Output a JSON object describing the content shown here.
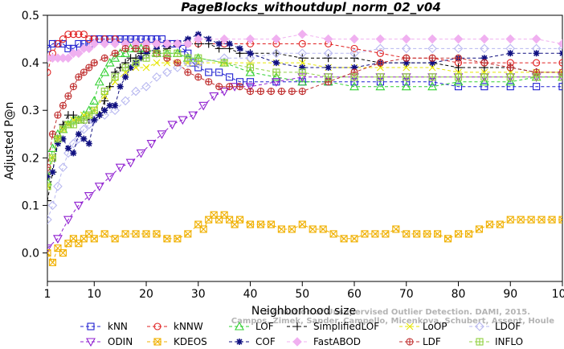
{
  "chart_data": {
    "type": "line",
    "title": "PageBlocks_withoutdupl_norm_02_v04",
    "xlabel": "Neighborhood size",
    "ylabel": "Adjusted P@n",
    "xlim": [
      1,
      100
    ],
    "ylim": [
      -0.06,
      0.5
    ],
    "x_ticks": [
      1,
      10,
      20,
      30,
      40,
      50,
      60,
      70,
      80,
      90,
      100
    ],
    "y_ticks": [
      0.0,
      0.1,
      0.2,
      0.3,
      0.4,
      0.5
    ],
    "x_tick_labels": [
      "1",
      "10",
      "20",
      "30",
      "40",
      "50",
      "60",
      "70",
      "80",
      "90",
      "100"
    ],
    "y_tick_labels": [
      "0.0",
      "0.1",
      "0.2",
      "0.3",
      "0.4",
      "0.5"
    ],
    "grid": false,
    "legend_position": "bottom",
    "watermark_lines": [
      "Campos, Zimek, Sander, Campello, Micenkova, Schubert, Assent, Houle",
      "Evaluation of Unsupervised Outlier Detection. DAMI, 2015."
    ],
    "series": [
      {
        "name": "kNN",
        "color": "#2020d0",
        "marker": "square",
        "dash": "dash",
        "x": [
          1,
          2,
          3,
          4,
          5,
          6,
          7,
          8,
          9,
          10,
          11,
          12,
          13,
          14,
          15,
          16,
          17,
          18,
          19,
          20,
          21,
          22,
          23,
          24,
          25,
          26,
          27,
          28,
          29,
          30,
          32,
          34,
          36,
          38,
          40,
          45,
          50,
          55,
          60,
          65,
          70,
          75,
          80,
          85,
          90,
          95,
          100
        ],
        "y": [
          0.43,
          0.44,
          0.44,
          0.44,
          0.43,
          0.43,
          0.44,
          0.44,
          0.44,
          0.45,
          0.45,
          0.45,
          0.45,
          0.45,
          0.45,
          0.45,
          0.45,
          0.45,
          0.45,
          0.45,
          0.45,
          0.45,
          0.45,
          0.44,
          0.44,
          0.44,
          0.43,
          0.42,
          0.4,
          0.39,
          0.38,
          0.38,
          0.37,
          0.36,
          0.36,
          0.36,
          0.36,
          0.36,
          0.36,
          0.36,
          0.36,
          0.36,
          0.35,
          0.35,
          0.35,
          0.35,
          0.35
        ]
      },
      {
        "name": "kNNW",
        "color": "#e02020",
        "marker": "circle",
        "dash": "dash",
        "x": [
          1,
          2,
          3,
          4,
          5,
          6,
          7,
          8,
          9,
          10,
          12,
          14,
          16,
          18,
          20,
          22,
          24,
          26,
          28,
          30,
          35,
          40,
          45,
          50,
          55,
          60,
          65,
          70,
          75,
          80,
          85,
          90,
          95,
          100
        ],
        "y": [
          0.38,
          0.42,
          0.44,
          0.45,
          0.46,
          0.46,
          0.46,
          0.46,
          0.45,
          0.45,
          0.45,
          0.45,
          0.44,
          0.44,
          0.44,
          0.44,
          0.44,
          0.44,
          0.44,
          0.44,
          0.44,
          0.44,
          0.44,
          0.44,
          0.44,
          0.43,
          0.42,
          0.41,
          0.41,
          0.4,
          0.4,
          0.4,
          0.4,
          0.4
        ]
      },
      {
        "name": "LOF",
        "color": "#30d030",
        "marker": "triangle",
        "dash": "dash",
        "x": [
          1,
          2,
          3,
          4,
          5,
          6,
          7,
          8,
          9,
          10,
          11,
          12,
          13,
          14,
          15,
          16,
          17,
          18,
          19,
          20,
          22,
          24,
          26,
          28,
          30,
          35,
          40,
          45,
          50,
          55,
          60,
          65,
          70,
          75,
          80,
          85,
          90,
          95,
          100
        ],
        "y": [
          0.15,
          0.22,
          0.25,
          0.26,
          0.27,
          0.28,
          0.28,
          0.29,
          0.3,
          0.32,
          0.36,
          0.38,
          0.4,
          0.41,
          0.42,
          0.42,
          0.43,
          0.43,
          0.43,
          0.43,
          0.42,
          0.42,
          0.42,
          0.41,
          0.41,
          0.4,
          0.38,
          0.37,
          0.36,
          0.36,
          0.35,
          0.35,
          0.35,
          0.35,
          0.36,
          0.36,
          0.36,
          0.37,
          0.37
        ]
      },
      {
        "name": "SimplifiedLOF",
        "color": "#000000",
        "marker": "plus",
        "dash": "dash",
        "x": [
          1,
          2,
          3,
          4,
          5,
          6,
          7,
          8,
          9,
          10,
          11,
          12,
          13,
          14,
          15,
          16,
          17,
          18,
          19,
          20,
          22,
          24,
          26,
          28,
          30,
          32,
          34,
          36,
          38,
          40,
          45,
          50,
          55,
          60,
          65,
          70,
          75,
          80,
          85,
          90,
          95,
          100
        ],
        "y": [
          0.11,
          0.17,
          0.24,
          0.27,
          0.29,
          0.29,
          0.28,
          0.28,
          0.28,
          0.28,
          0.29,
          0.32,
          0.35,
          0.38,
          0.39,
          0.4,
          0.41,
          0.41,
          0.42,
          0.42,
          0.42,
          0.43,
          0.44,
          0.44,
          0.44,
          0.44,
          0.43,
          0.43,
          0.42,
          0.42,
          0.42,
          0.41,
          0.41,
          0.41,
          0.4,
          0.4,
          0.4,
          0.39,
          0.39,
          0.39,
          0.38,
          0.38
        ]
      },
      {
        "name": "LoOP",
        "color": "#e6e600",
        "marker": "x",
        "dash": "dash",
        "x": [
          1,
          2,
          3,
          4,
          5,
          6,
          7,
          8,
          9,
          10,
          12,
          14,
          16,
          18,
          20,
          22,
          24,
          26,
          28,
          30,
          35,
          40,
          45,
          50,
          55,
          60,
          65,
          70,
          75,
          80,
          85,
          90,
          95,
          100
        ],
        "y": [
          0.14,
          0.2,
          0.24,
          0.26,
          0.27,
          0.28,
          0.28,
          0.29,
          0.29,
          0.3,
          0.33,
          0.36,
          0.38,
          0.39,
          0.39,
          0.4,
          0.4,
          0.4,
          0.4,
          0.4,
          0.4,
          0.4,
          0.4,
          0.4,
          0.39,
          0.39,
          0.39,
          0.39,
          0.39,
          0.38,
          0.38,
          0.38,
          0.38,
          0.38
        ]
      },
      {
        "name": "LDOF",
        "color": "#b8b8f0",
        "marker": "diamond",
        "dash": "dash",
        "x": [
          1,
          2,
          3,
          4,
          5,
          6,
          7,
          8,
          9,
          10,
          12,
          14,
          16,
          18,
          20,
          22,
          24,
          26,
          28,
          30,
          35,
          40,
          45,
          50,
          55,
          60,
          65,
          70,
          75,
          80,
          85,
          90,
          95,
          100
        ],
        "y": [
          0.07,
          0.1,
          0.14,
          0.18,
          0.21,
          0.23,
          0.24,
          0.26,
          0.27,
          0.28,
          0.29,
          0.3,
          0.32,
          0.34,
          0.35,
          0.37,
          0.38,
          0.39,
          0.4,
          0.4,
          0.41,
          0.41,
          0.42,
          0.42,
          0.42,
          0.42,
          0.43,
          0.43,
          0.43,
          0.43,
          0.43,
          0.43,
          0.43,
          0.43
        ]
      },
      {
        "name": "ODIN",
        "color": "#9020d0",
        "marker": "triangle-down",
        "dash": "dash",
        "x": [
          1,
          3,
          5,
          7,
          9,
          11,
          13,
          15,
          17,
          19,
          21,
          23,
          25,
          27,
          29,
          31,
          33,
          35,
          37,
          40,
          45,
          50,
          55,
          60,
          65,
          70,
          75,
          80,
          85,
          90,
          95,
          100
        ],
        "y": [
          0.01,
          0.03,
          0.07,
          0.1,
          0.12,
          0.14,
          0.16,
          0.18,
          0.19,
          0.21,
          0.23,
          0.25,
          0.27,
          0.28,
          0.29,
          0.31,
          0.33,
          0.34,
          0.35,
          0.35,
          0.36,
          0.37,
          0.37,
          0.37,
          0.37,
          0.37,
          0.37,
          0.37,
          0.37,
          0.37,
          0.37,
          0.37
        ]
      },
      {
        "name": "KDEOS",
        "color": "#f0b000",
        "marker": "square-x",
        "dash": "dash",
        "x": [
          1,
          2,
          3,
          4,
          5,
          6,
          7,
          8,
          9,
          10,
          12,
          14,
          16,
          18,
          20,
          22,
          24,
          26,
          28,
          30,
          31,
          32,
          33,
          34,
          35,
          36,
          37,
          38,
          40,
          42,
          44,
          46,
          48,
          50,
          52,
          54,
          56,
          58,
          60,
          62,
          64,
          66,
          68,
          70,
          72,
          74,
          76,
          78,
          80,
          82,
          84,
          86,
          88,
          90,
          92,
          94,
          96,
          98,
          100
        ],
        "y": [
          0.0,
          -0.02,
          0.01,
          0.0,
          0.02,
          0.03,
          0.02,
          0.03,
          0.04,
          0.03,
          0.04,
          0.03,
          0.04,
          0.04,
          0.04,
          0.04,
          0.03,
          0.03,
          0.04,
          0.06,
          0.05,
          0.07,
          0.08,
          0.07,
          0.08,
          0.07,
          0.06,
          0.07,
          0.06,
          0.06,
          0.06,
          0.05,
          0.05,
          0.06,
          0.05,
          0.05,
          0.04,
          0.03,
          0.03,
          0.04,
          0.04,
          0.04,
          0.05,
          0.04,
          0.04,
          0.04,
          0.04,
          0.03,
          0.04,
          0.04,
          0.05,
          0.06,
          0.06,
          0.07,
          0.07,
          0.07,
          0.07,
          0.07,
          0.07
        ]
      },
      {
        "name": "COF",
        "color": "#101080",
        "marker": "asterisk",
        "dash": "dash",
        "x": [
          1,
          2,
          3,
          4,
          5,
          6,
          7,
          8,
          9,
          10,
          11,
          12,
          13,
          14,
          15,
          16,
          17,
          18,
          19,
          20,
          22,
          24,
          26,
          28,
          30,
          32,
          34,
          36,
          38,
          40,
          45,
          50,
          55,
          60,
          65,
          70,
          75,
          80,
          85,
          90,
          95,
          100
        ],
        "y": [
          0.16,
          0.17,
          0.23,
          0.24,
          0.22,
          0.21,
          0.25,
          0.24,
          0.23,
          0.28,
          0.29,
          0.3,
          0.31,
          0.31,
          0.35,
          0.37,
          0.39,
          0.4,
          0.41,
          0.42,
          0.43,
          0.44,
          0.44,
          0.45,
          0.46,
          0.45,
          0.44,
          0.44,
          0.43,
          0.42,
          0.4,
          0.39,
          0.39,
          0.39,
          0.4,
          0.4,
          0.4,
          0.41,
          0.41,
          0.42,
          0.42,
          0.42
        ]
      },
      {
        "name": "FastABOD",
        "color": "#f0b0f0",
        "marker": "diamond-filled",
        "dash": "dash",
        "x": [
          1,
          2,
          3,
          4,
          5,
          6,
          7,
          8,
          9,
          10,
          12,
          14,
          16,
          18,
          20,
          22,
          24,
          26,
          28,
          30,
          35,
          40,
          45,
          50,
          55,
          60,
          65,
          70,
          75,
          80,
          85,
          90,
          95,
          100
        ],
        "y": [
          0.41,
          0.41,
          0.41,
          0.41,
          0.41,
          0.42,
          0.42,
          0.43,
          0.43,
          0.44,
          0.44,
          0.44,
          0.44,
          0.44,
          0.44,
          0.44,
          0.44,
          0.44,
          0.44,
          0.45,
          0.45,
          0.45,
          0.45,
          0.46,
          0.45,
          0.45,
          0.45,
          0.45,
          0.45,
          0.45,
          0.45,
          0.45,
          0.45,
          0.44
        ]
      },
      {
        "name": "LDF",
        "color": "#c03030",
        "marker": "circle-plus",
        "dash": "dash",
        "x": [
          1,
          2,
          3,
          4,
          5,
          6,
          7,
          8,
          9,
          10,
          12,
          14,
          16,
          18,
          20,
          22,
          24,
          26,
          28,
          30,
          32,
          34,
          36,
          38,
          40,
          42,
          44,
          46,
          48,
          50,
          55,
          60,
          65,
          70,
          75,
          80,
          85,
          90,
          95,
          100
        ],
        "y": [
          0.18,
          0.25,
          0.29,
          0.31,
          0.33,
          0.35,
          0.37,
          0.38,
          0.39,
          0.4,
          0.41,
          0.42,
          0.43,
          0.43,
          0.43,
          0.42,
          0.41,
          0.4,
          0.38,
          0.37,
          0.36,
          0.35,
          0.35,
          0.35,
          0.34,
          0.34,
          0.34,
          0.34,
          0.34,
          0.34,
          0.36,
          0.38,
          0.4,
          0.41,
          0.41,
          0.41,
          0.4,
          0.39,
          0.38,
          0.38
        ]
      },
      {
        "name": "INFLO",
        "color": "#90d040",
        "marker": "square-plus",
        "dash": "dash",
        "x": [
          1,
          2,
          3,
          4,
          5,
          6,
          7,
          8,
          9,
          10,
          12,
          14,
          16,
          18,
          20,
          22,
          24,
          26,
          28,
          30,
          35,
          40,
          45,
          50,
          55,
          60,
          65,
          70,
          75,
          80,
          85,
          90,
          95,
          100
        ],
        "y": [
          0.14,
          0.2,
          0.24,
          0.26,
          0.27,
          0.27,
          0.28,
          0.28,
          0.29,
          0.3,
          0.34,
          0.37,
          0.39,
          0.4,
          0.41,
          0.42,
          0.42,
          0.42,
          0.41,
          0.41,
          0.4,
          0.39,
          0.38,
          0.38,
          0.37,
          0.37,
          0.37,
          0.37,
          0.37,
          0.37,
          0.37,
          0.37,
          0.37,
          0.37
        ]
      }
    ]
  }
}
